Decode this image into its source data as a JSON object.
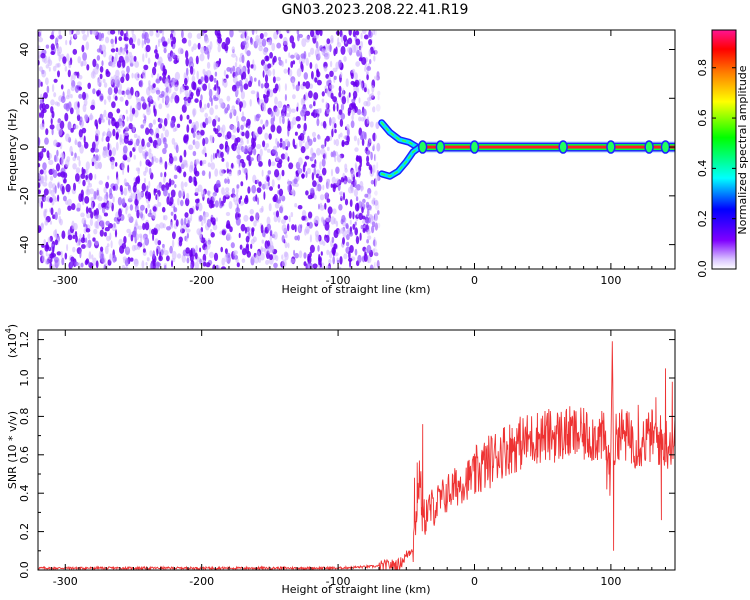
{
  "title": "GN03.2023.208.22.41.R19",
  "chart_data": [
    {
      "type": "heatmap",
      "xlabel": "Height of straight line (km)",
      "ylabel": "Frequency (Hz)",
      "xlim": [
        -320,
        147
      ],
      "ylim": [
        -50,
        48
      ],
      "x_ticks": [
        -300,
        -200,
        -100,
        0,
        100
      ],
      "y_ticks": [
        -40,
        -20,
        0,
        20,
        40
      ],
      "colorbar": {
        "label": "Normalized spectral amplitude",
        "ticks": [
          "0.0",
          "0.2",
          "0.4",
          "0.6",
          "0.8"
        ],
        "range": [
          0,
          0.95
        ],
        "colors": [
          "#ffffff",
          "#7f00ff",
          "#0000ff",
          "#00ffff",
          "#00ff00",
          "#ffff00",
          "#ff7f00",
          "#ff0000",
          "#ff1493"
        ]
      },
      "features": [
        {
          "type": "noise_region",
          "x_range": [
            -320,
            -70
          ],
          "y_range": [
            -50,
            48
          ]
        },
        {
          "type": "branch",
          "points": [
            [
              -68,
              10
            ],
            [
              -62,
              6
            ],
            [
              -55,
              3
            ],
            [
              -48,
              2
            ],
            [
              -42,
              0
            ],
            [
              -38,
              0
            ]
          ]
        },
        {
          "type": "branch",
          "points": [
            [
              -68,
              -11
            ],
            [
              -62,
              -12
            ],
            [
              -56,
              -10
            ],
            [
              -50,
              -6
            ],
            [
              -45,
              -2
            ],
            [
              -40,
              0
            ]
          ]
        },
        {
          "type": "tone",
          "x_range": [
            -40,
            147
          ],
          "y": 0
        }
      ]
    },
    {
      "type": "line",
      "xlabel": "Height of straight line (km)",
      "ylabel": "SNR (10 * v/v)",
      "y_multiplier_label": "(x10",
      "y_multiplier_exp": "4",
      "y_multiplier_close": ")",
      "xlim": [
        -320,
        147
      ],
      "ylim": [
        0,
        1.25
      ],
      "x_ticks": [
        -300,
        -200,
        -100,
        0,
        100
      ],
      "y_ticks": [
        "0.0",
        "0.2",
        "0.4",
        "0.6",
        "0.8",
        "1.0",
        "1.2"
      ],
      "color": "#ee3333",
      "series": [
        {
          "x": [
            -320,
            -100,
            -70,
            -55,
            -45,
            -40,
            -38,
            -35,
            -30,
            -25,
            -20,
            -10,
            0,
            10,
            20,
            30,
            40,
            50,
            60,
            70,
            80,
            90,
            95,
            100,
            101,
            102,
            105,
            110,
            120,
            130,
            140,
            147
          ],
          "y": [
            0.01,
            0.01,
            0.02,
            0.03,
            0.12,
            0.5,
            0.25,
            0.3,
            0.33,
            0.36,
            0.4,
            0.45,
            0.5,
            0.56,
            0.62,
            0.65,
            0.68,
            0.7,
            0.7,
            0.71,
            0.7,
            0.7,
            0.68,
            0.5,
            1.25,
            0.6,
            0.72,
            0.7,
            0.66,
            0.7,
            0.66,
            0.68
          ],
          "spikes": [
            [
              -38,
              0.76
            ],
            [
              -42,
              0.56
            ],
            [
              -44,
              0.48
            ],
            [
              102,
              0.1
            ],
            [
              97,
              0.42
            ],
            [
              133,
              0.9
            ],
            [
              140,
              1.05
            ],
            [
              145,
              0.98
            ],
            [
              137,
              0.26
            ],
            [
              120,
              0.86
            ],
            [
              115,
              0.78
            ]
          ]
        }
      ]
    }
  ]
}
